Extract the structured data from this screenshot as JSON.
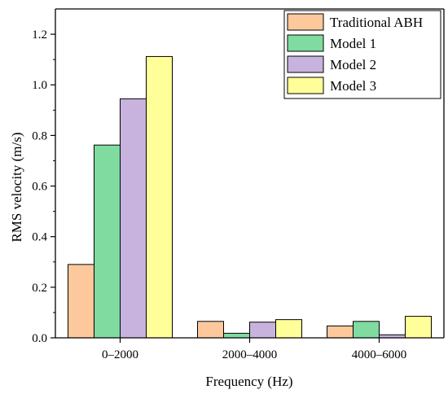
{
  "chart_data": {
    "type": "bar",
    "categories": [
      "0–2000",
      "2000–4000",
      "4000–6000"
    ],
    "series": [
      {
        "name": "Traditional ABH",
        "color": "#FDC89C",
        "values": [
          0.29,
          0.065,
          0.047
        ]
      },
      {
        "name": "Model 1",
        "color": "#7FDB9F",
        "values": [
          0.762,
          0.018,
          0.065
        ]
      },
      {
        "name": "Model 2",
        "color": "#C7B3DD",
        "values": [
          0.945,
          0.062,
          0.012
        ]
      },
      {
        "name": "Model 3",
        "color": "#FFFF99",
        "values": [
          1.112,
          0.072,
          0.085
        ]
      }
    ],
    "xlabel": "Frequency (Hz)",
    "ylabel": "RMS velocity (m/s)",
    "ylim": [
      0,
      1.3
    ],
    "yticks": [
      "0.0",
      "0.2",
      "0.4",
      "0.6",
      "0.8",
      "1.0",
      "1.2"
    ],
    "legend_position": "top-right",
    "grid": false
  }
}
